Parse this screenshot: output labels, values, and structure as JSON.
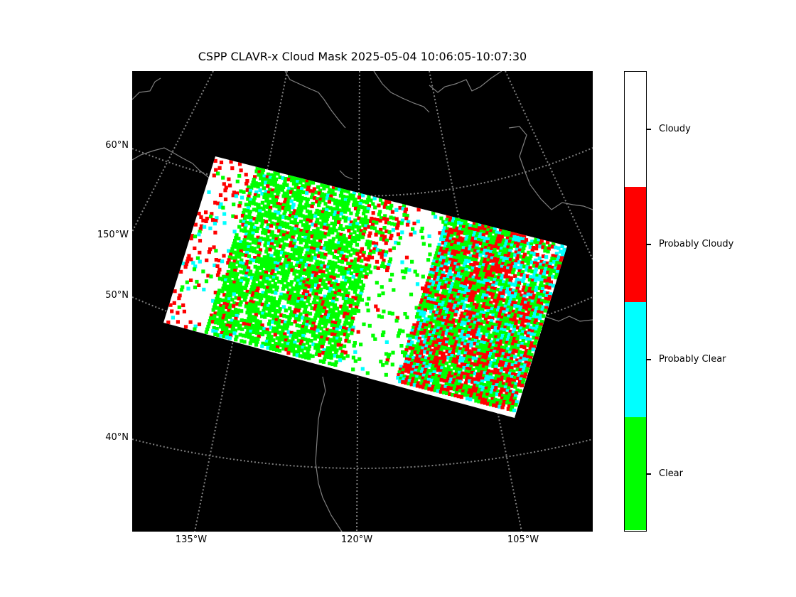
{
  "title": "CSPP CLAVR-x Cloud Mask 2025-05-04 10:06:05-10:07:30",
  "map": {
    "background_color": "#000000",
    "gridline_color": "#808080",
    "coastline_color": "#808080",
    "latitude_labels": [
      "60°N",
      "150°W",
      "50°N",
      "40°N"
    ],
    "longitude_labels": [
      "135°W",
      "120°W",
      "105°W"
    ]
  },
  "colorbar": {
    "classes": [
      {
        "label": "Cloudy",
        "color": "#ffffff"
      },
      {
        "label": "Probably Cloudy",
        "color": "#ff0000"
      },
      {
        "label": "Probably Clear",
        "color": "#00ffff"
      },
      {
        "label": "Clear",
        "color": "#00ff00"
      }
    ]
  }
}
